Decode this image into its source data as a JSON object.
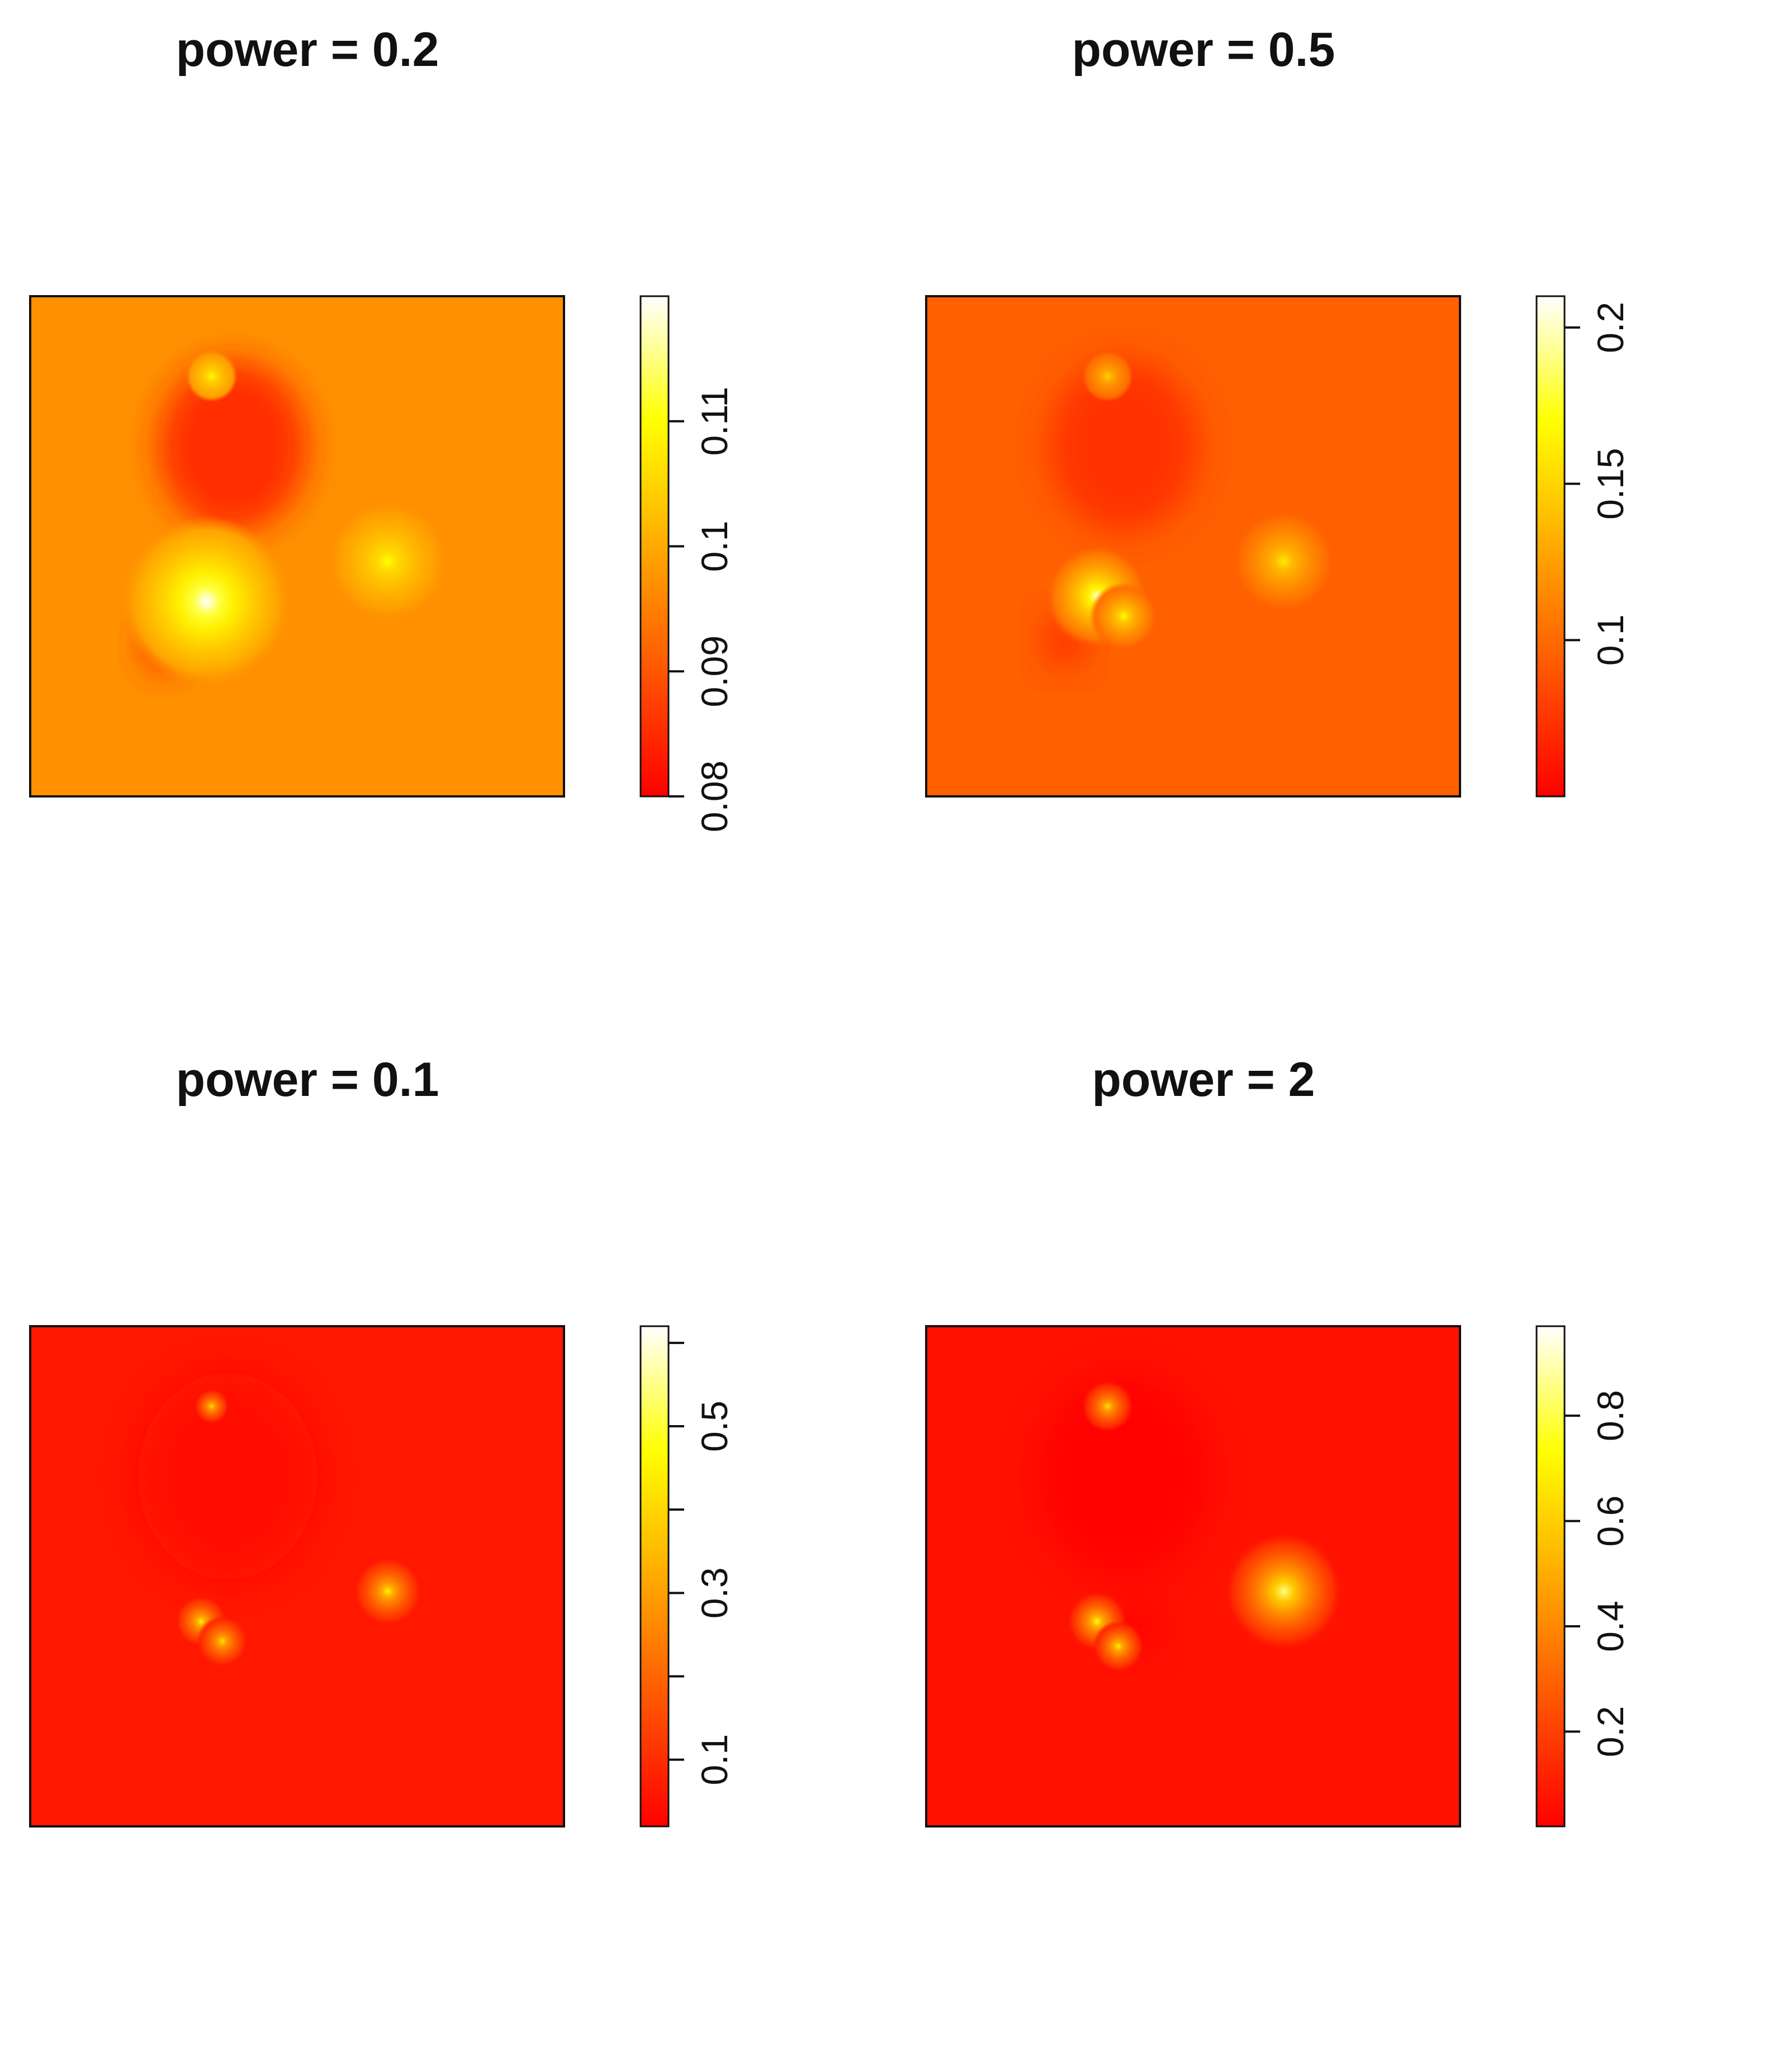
{
  "colors": {
    "map_base_low": "#ff2a00",
    "map_base_mid": "#ff5a00",
    "map_base_high": "#ff7a00",
    "hotspot": "#ffff60",
    "frame": "#111111"
  },
  "chart_data": [
    {
      "type": "heatmap",
      "title": "power = 0.2",
      "xlabel": "",
      "ylabel": "",
      "colorbar": {
        "min": 0.08,
        "max": 0.12,
        "ticks": [
          0.08,
          0.09,
          0.1,
          0.11
        ],
        "tick_labels": [
          "0.08",
          "0.09",
          "0.1",
          "0.11"
        ],
        "palette": "heat"
      },
      "background_level": 0.097,
      "hotspots": [
        {
          "x": 0.33,
          "y": 0.39,
          "value": 0.12,
          "spread": 0.1
        },
        {
          "x": 0.67,
          "y": 0.47,
          "value": 0.11,
          "spread": 0.07
        },
        {
          "x": 0.34,
          "y": 0.84,
          "value": 0.11,
          "spread": 0.03
        }
      ],
      "coldspots": [
        {
          "x": 0.38,
          "y": 0.7,
          "value": 0.083,
          "spread": 0.1
        },
        {
          "x": 0.25,
          "y": 0.3,
          "value": 0.085,
          "spread": 0.03
        }
      ]
    },
    {
      "type": "heatmap",
      "title": "power = 0.5",
      "xlabel": "",
      "ylabel": "",
      "colorbar": {
        "min": 0.05,
        "max": 0.21,
        "ticks": [
          0.1,
          0.15,
          0.2
        ],
        "tick_labels": [
          "0.1",
          "0.15",
          "0.2"
        ],
        "palette": "heat"
      },
      "background_level": 0.095,
      "hotspots": [
        {
          "x": 0.32,
          "y": 0.4,
          "value": 0.2,
          "spread": 0.06
        },
        {
          "x": 0.37,
          "y": 0.36,
          "value": 0.17,
          "spread": 0.04
        },
        {
          "x": 0.67,
          "y": 0.47,
          "value": 0.16,
          "spread": 0.06
        },
        {
          "x": 0.34,
          "y": 0.84,
          "value": 0.15,
          "spread": 0.03
        }
      ],
      "coldspots": [
        {
          "x": 0.37,
          "y": 0.7,
          "value": 0.07,
          "spread": 0.1
        },
        {
          "x": 0.26,
          "y": 0.31,
          "value": 0.07,
          "spread": 0.03
        }
      ]
    },
    {
      "type": "heatmap",
      "title": "power = 0.1",
      "xlabel": "",
      "ylabel": "",
      "colorbar": {
        "min": 0.02,
        "max": 0.62,
        "ticks": [
          0.1,
          0.2,
          0.3,
          0.4,
          0.5,
          0.6
        ],
        "tick_labels": [
          "0.1",
          "",
          "0.3",
          "",
          "0.5",
          ""
        ],
        "palette": "heat"
      },
      "background_level": 0.06,
      "hotspots": [
        {
          "x": 0.32,
          "y": 0.41,
          "value": 0.45,
          "spread": 0.03
        },
        {
          "x": 0.36,
          "y": 0.37,
          "value": 0.42,
          "spread": 0.03
        },
        {
          "x": 0.67,
          "y": 0.47,
          "value": 0.45,
          "spread": 0.04
        },
        {
          "x": 0.34,
          "y": 0.84,
          "value": 0.42,
          "spread": 0.02
        }
      ],
      "coldspots": [
        {
          "x": 0.37,
          "y": 0.7,
          "value": 0.04,
          "spread": 0.12
        }
      ]
    },
    {
      "type": "heatmap",
      "title": "power = 2",
      "xlabel": "",
      "ylabel": "",
      "colorbar": {
        "min": 0.02,
        "max": 0.97,
        "ticks": [
          0.2,
          0.4,
          0.6,
          0.8
        ],
        "tick_labels": [
          "0.2",
          "0.4",
          "0.6",
          "0.8"
        ],
        "palette": "heat"
      },
      "background_level": 0.07,
      "hotspots": [
        {
          "x": 0.67,
          "y": 0.47,
          "value": 0.85,
          "spread": 0.07
        },
        {
          "x": 0.32,
          "y": 0.41,
          "value": 0.75,
          "spread": 0.035
        },
        {
          "x": 0.36,
          "y": 0.36,
          "value": 0.7,
          "spread": 0.03
        },
        {
          "x": 0.34,
          "y": 0.84,
          "value": 0.65,
          "spread": 0.03
        }
      ],
      "coldspots": [
        {
          "x": 0.37,
          "y": 0.7,
          "value": 0.03,
          "spread": 0.12
        },
        {
          "x": 0.4,
          "y": 0.4,
          "value": 0.03,
          "spread": 0.03
        }
      ]
    }
  ]
}
